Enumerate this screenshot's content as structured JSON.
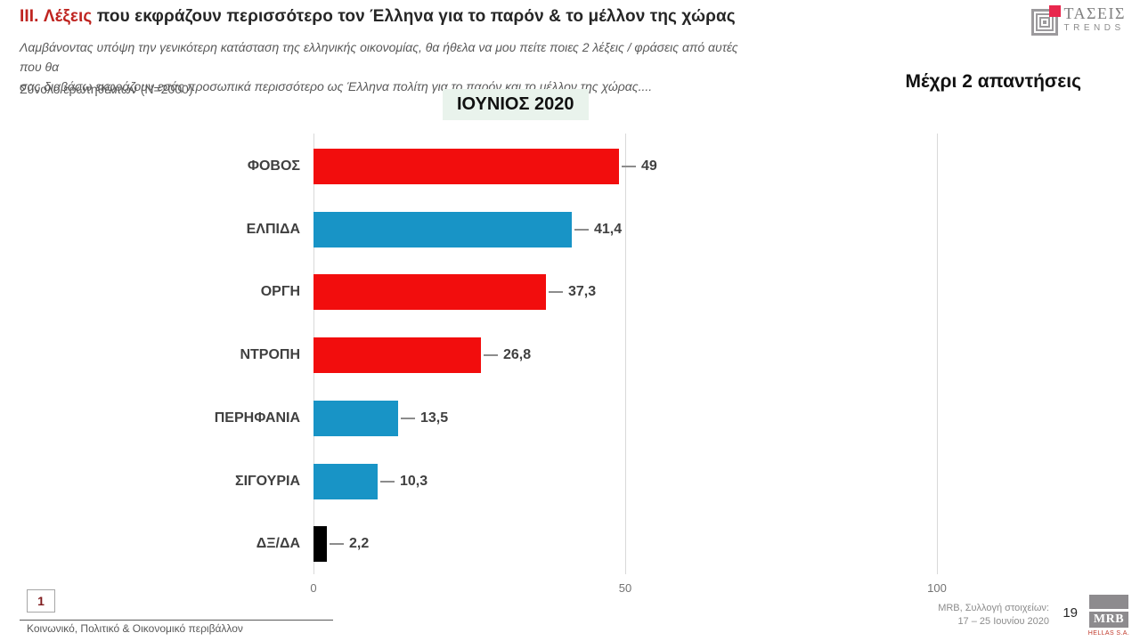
{
  "header": {
    "title_prefix": "III. Λέξεις",
    "title_rest": " που εκφράζουν περισσότερο τον Έλληνα για το παρόν & το μέλλον της χώρας",
    "subtitle_line1": "Λαμβάνοντας υπόψη την γενικότερη κατάσταση της ελληνικής οικονομίας, θα ήθελα να μου πείτε ποιες 2 λέξεις / φράσεις από αυτές που θα",
    "subtitle_line2": "σας διαβάσω εκφράζουν εσάς προσωπικά περισσότερο ως Έλληνα πολίτη για το παρόν και το μέλλον της χώρας....",
    "sample_note": "Σύνολο ερωτηθέντων (N=2000)",
    "period_badge": "ΙΟΥΝΙΟΣ 2020",
    "answers_note": "Μέχρι 2 απαντήσεις",
    "brand_name": "ΤΑΣΕΙΣ",
    "brand_subname": "TRENDS"
  },
  "chart_data": {
    "type": "bar",
    "orientation": "horizontal",
    "title": "ΙΟΥΝΙΟΣ 2020",
    "categories": [
      "ΦΟΒΟΣ",
      "ΕΛΠΙΔΑ",
      "ΟΡΓΗ",
      "ΝΤΡΟΠΗ",
      "ΠΕΡΗΦΑΝΙΑ",
      "ΣΙΓΟΥΡΙΑ",
      "ΔΞ/ΔΑ"
    ],
    "values": [
      49,
      41.4,
      37.3,
      26.8,
      13.5,
      10.3,
      2.2
    ],
    "value_labels": [
      "49",
      "41,4",
      "37,3",
      "26,8",
      "13,5",
      "10,3",
      "2,2"
    ],
    "bar_colors": [
      "#f20d0d",
      "#1894c6",
      "#f20d0d",
      "#f20d0d",
      "#1894c6",
      "#1894c6",
      "#000000"
    ],
    "xlim": [
      0,
      100
    ],
    "x_ticks": [
      0,
      50,
      100
    ],
    "x_tick_labels": [
      "0",
      "50",
      "100"
    ],
    "grid": true,
    "legend": "none"
  },
  "footer": {
    "page_box": "1",
    "section": "Κοινωνικό, Πολιτικό & Οικονομικό περιβάλλον",
    "source_line1": "MRB, Συλλογή στοιχείων:",
    "source_line2": "17 – 25 Ιουνίου 2020",
    "page_number": "19",
    "logo_name": "MRB",
    "logo_subname": "HELLAS S.A."
  },
  "colors": {
    "accent_red": "#bf2420",
    "bar_red": "#f20d0d",
    "bar_blue": "#1894c6",
    "bar_black": "#000000",
    "badge_bg": "#e9f3ec",
    "gridline": "#d9d9d9"
  }
}
